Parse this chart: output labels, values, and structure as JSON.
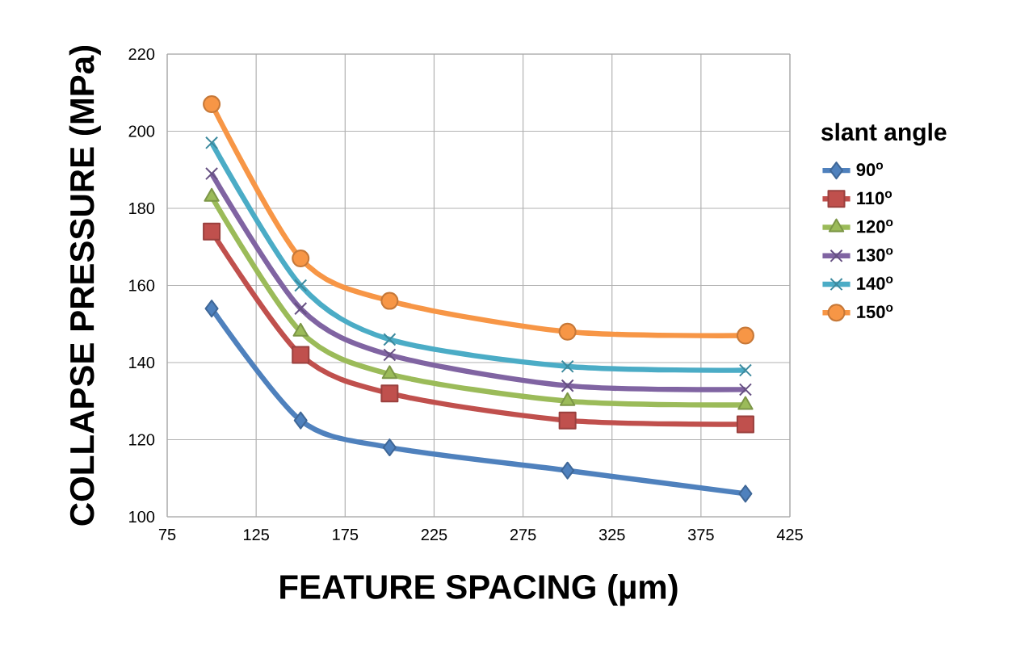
{
  "chart_data": {
    "type": "line",
    "xlabel": "FEATURE SPACING (µm)",
    "ylabel": "COLLAPSE PRESSURE (MPa)",
    "legend_title": "slant angle",
    "x": [
      100,
      150,
      200,
      300,
      400
    ],
    "series": [
      {
        "name": "90$^{o}$",
        "color": "#4f81bd",
        "marker": "diamond",
        "values": [
          154,
          125,
          118,
          112,
          106
        ]
      },
      {
        "name": "110$^{o}$",
        "color": "#c0504d",
        "marker": "square",
        "values": [
          174,
          142,
          132,
          125,
          124
        ]
      },
      {
        "name": "120$^{o}$",
        "color": "#9bbb59",
        "marker": "triangle",
        "values": [
          183,
          148,
          137,
          130,
          129
        ]
      },
      {
        "name": "130$^{o}$",
        "color": "#8064a2",
        "marker": "cross",
        "values": [
          189,
          154,
          142,
          134,
          133
        ]
      },
      {
        "name": "140$^{o}$",
        "color": "#4bacc6",
        "marker": "cross",
        "values": [
          197,
          160,
          146,
          139,
          138
        ]
      },
      {
        "name": "150$^{o}$",
        "color": "#f79646",
        "marker": "circle",
        "values": [
          207,
          167,
          156,
          148,
          147
        ]
      }
    ],
    "xlim": [
      75,
      425
    ],
    "xticks": [
      75,
      125,
      175,
      225,
      275,
      325,
      375,
      425
    ],
    "ylim": [
      100,
      220
    ],
    "yticks": [
      100,
      120,
      140,
      160,
      180,
      200,
      220
    ],
    "grid": true,
    "legend": "right",
    "line_style": "solid"
  }
}
